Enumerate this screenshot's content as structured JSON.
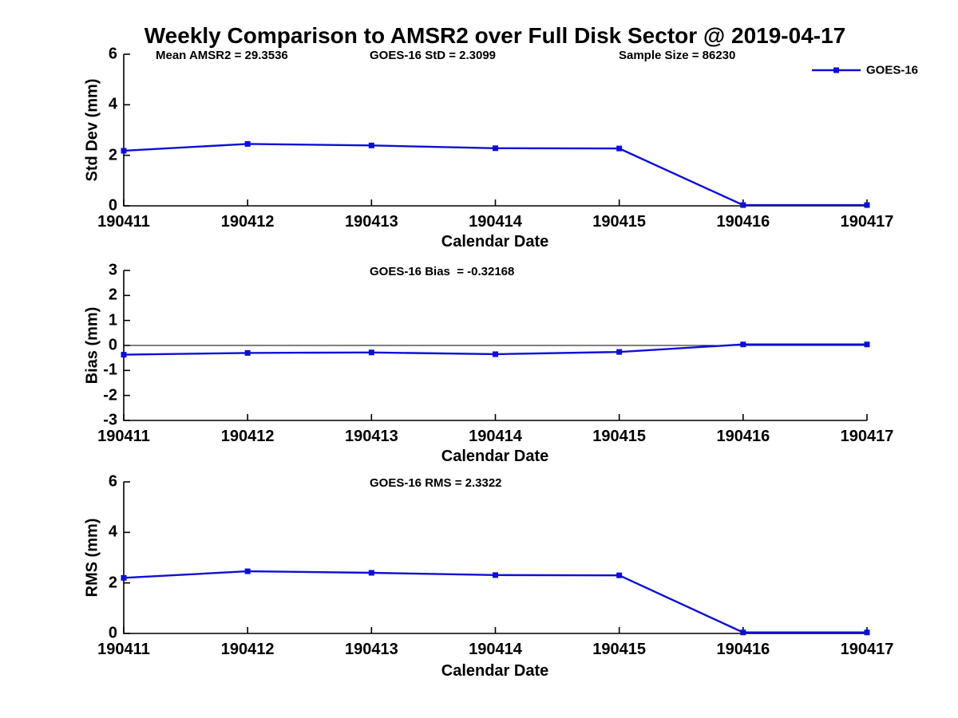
{
  "title": "Weekly Comparison to AMSR2 over Full Disk Sector @ 2019-04-17",
  "colors": {
    "line": "#0e0ed8",
    "axis": "#000000",
    "text": "#000000"
  },
  "legend": {
    "label": "GOES-16"
  },
  "chart_data": [
    {
      "type": "line",
      "subplot": "std-dev",
      "categories": [
        "190411",
        "190412",
        "190413",
        "190414",
        "190415",
        "190416",
        "190417"
      ],
      "series": [
        {
          "name": "GOES-16",
          "values": [
            2.18,
            2.45,
            2.39,
            2.28,
            2.27,
            0.03,
            0.03
          ]
        }
      ],
      "annotations": [
        "Mean AMSR2 = 29.3536",
        "GOES-16 StD = 2.3099",
        "Sample Size = 86230"
      ],
      "xlabel": "Calendar Date",
      "ylabel": "Std Dev (mm)",
      "ylim": [
        0,
        6
      ],
      "yticks": [
        0,
        2,
        4,
        6
      ],
      "legend_position": "northeast-outside-top",
      "grid": false
    },
    {
      "type": "line",
      "subplot": "bias",
      "categories": [
        "190411",
        "190412",
        "190413",
        "190414",
        "190415",
        "190416",
        "190417"
      ],
      "series": [
        {
          "name": "GOES-16",
          "values": [
            -0.37,
            -0.3,
            -0.28,
            -0.35,
            -0.26,
            0.04,
            0.04
          ]
        }
      ],
      "annotations": [
        "GOES-16 Bias  = -0.32168"
      ],
      "xlabel": "Calendar Date",
      "ylabel": "Bias (mm)",
      "ylim": [
        -3,
        3
      ],
      "yticks": [
        -3,
        -2,
        -1,
        0,
        1,
        2,
        3
      ],
      "zero_line": true,
      "grid": false
    },
    {
      "type": "line",
      "subplot": "rms",
      "categories": [
        "190411",
        "190412",
        "190413",
        "190414",
        "190415",
        "190416",
        "190417"
      ],
      "series": [
        {
          "name": "GOES-16",
          "values": [
            2.2,
            2.46,
            2.4,
            2.31,
            2.3,
            0.04,
            0.04
          ]
        }
      ],
      "annotations": [
        "GOES-16 RMS = 2.3322"
      ],
      "xlabel": "Calendar Date",
      "ylabel": "RMS (mm)",
      "ylim": [
        0,
        6
      ],
      "yticks": [
        0,
        2,
        4,
        6
      ],
      "grid": false
    }
  ]
}
